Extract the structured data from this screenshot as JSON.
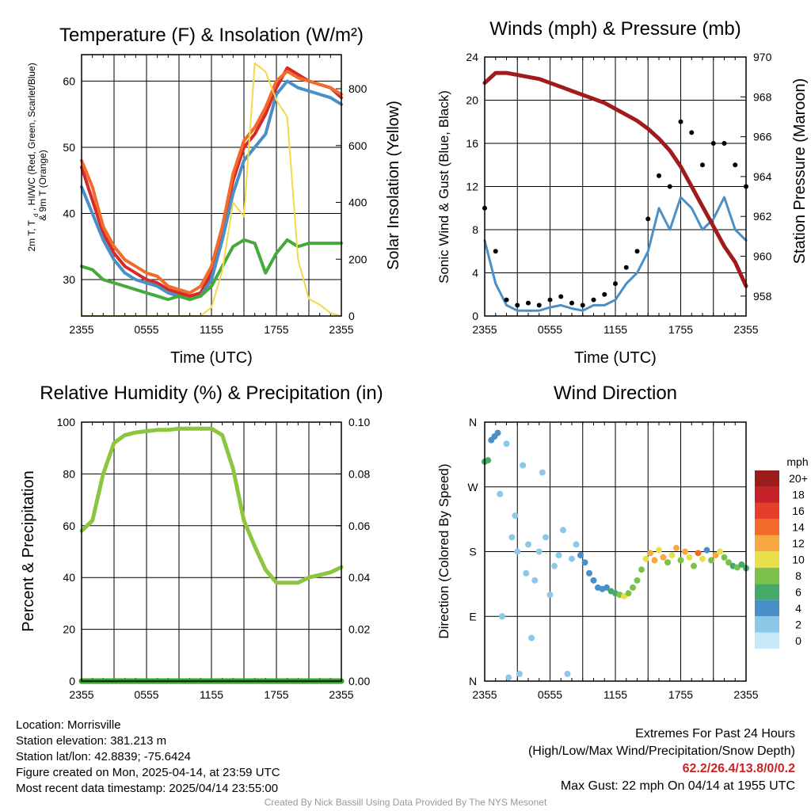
{
  "chart_data": [
    {
      "type": "line",
      "title": "Temperature (F) & Insolation (W/m²)",
      "xlabel": "Time (UTC)",
      "ylabel": "2m T, Td, HI/WC (Red, Green, Scarlet/Blue) & 9m T (Orange)",
      "ylabel_lines": [
        "2m T, T",
        "d",
        ", HI/WC (Red, Green, Scarlet/Blue)",
        "& 9m T (Orange)"
      ],
      "y2label": "Solar Insolation (Yellow)",
      "x_ticks": [
        "2355",
        "0555",
        "1155",
        "1755",
        "2355"
      ],
      "ylim": [
        24.5,
        64
      ],
      "yticks": [
        30,
        40,
        50,
        60
      ],
      "y2lim": [
        0,
        920
      ],
      "y2ticks": [
        0,
        200,
        400,
        600,
        800
      ],
      "x_hours": [
        0,
        1,
        2,
        3,
        4,
        5,
        6,
        7,
        8,
        9,
        10,
        11,
        12,
        13,
        14,
        15,
        16,
        17,
        18,
        19,
        20,
        21,
        22,
        23,
        24
      ],
      "series": [
        {
          "color": "#d42a2a",
          "axis": "left",
          "values": [
            47,
            42,
            37,
            34,
            32,
            31,
            30,
            29.5,
            28.5,
            28,
            27.5,
            28,
            31,
            37,
            45,
            50,
            52,
            55,
            59,
            62,
            61,
            60,
            59.5,
            59,
            57.5
          ]
        },
        {
          "color": "#f26b2a",
          "axis": "left",
          "values": [
            48,
            44,
            38,
            35,
            33,
            32,
            31,
            30.5,
            29,
            28.5,
            28,
            29,
            32,
            38,
            46,
            51,
            53,
            56,
            60,
            61.5,
            60.5,
            60,
            59.5,
            59,
            58
          ]
        },
        {
          "color": "#4a90c8",
          "axis": "left",
          "values": [
            44,
            40,
            36,
            33,
            31,
            30,
            29.5,
            29,
            28,
            27.5,
            27,
            27.5,
            30,
            36,
            43,
            48,
            50,
            52,
            58,
            60,
            59,
            58.5,
            58,
            57.5,
            56.5
          ]
        },
        {
          "color": "#44aa3a",
          "axis": "left",
          "values": [
            32,
            31.5,
            30,
            29.5,
            29,
            28.5,
            28,
            27.5,
            27,
            27.5,
            27,
            27.5,
            29,
            32,
            35,
            36,
            35.5,
            31,
            34,
            36,
            35,
            35.5,
            35.5,
            35.5,
            35.5
          ]
        },
        {
          "color": "#f5d84a",
          "axis": "right",
          "values": [
            0,
            0,
            0,
            0,
            0,
            0,
            0,
            0,
            0,
            0,
            0,
            0,
            30,
            160,
            400,
            350,
            890,
            860,
            760,
            700,
            200,
            60,
            40,
            10,
            0
          ]
        }
      ]
    },
    {
      "type": "line",
      "title": "Winds (mph) & Pressure (mb)",
      "xlabel": "Time (UTC)",
      "ylabel": "Sonic Wind & Gust (Blue, Black)",
      "y2label": "Station Pressure (Maroon)",
      "x_ticks": [
        "2355",
        "0555",
        "1155",
        "1755",
        "2355"
      ],
      "ylim": [
        0,
        24
      ],
      "yticks": [
        0,
        4,
        8,
        12,
        16,
        20,
        24
      ],
      "y2lim": [
        957,
        970
      ],
      "y2ticks": [
        958,
        960,
        962,
        964,
        966,
        968,
        970
      ],
      "x_hours": [
        0,
        1,
        2,
        3,
        4,
        5,
        6,
        7,
        8,
        9,
        10,
        11,
        12,
        13,
        14,
        15,
        16,
        17,
        18,
        19,
        20,
        21,
        22,
        23,
        24
      ],
      "series": [
        {
          "color": "#4a90c8",
          "axis": "left",
          "values": [
            7,
            3,
            1,
            0.5,
            0.5,
            0.5,
            0.8,
            1,
            0.7,
            0.5,
            1,
            1,
            1.5,
            3,
            4,
            6,
            10,
            8,
            11,
            10,
            8,
            9,
            11,
            8,
            7
          ]
        },
        {
          "color": "#000000",
          "axis": "left",
          "values": [
            10,
            6,
            1.5,
            1,
            1.2,
            1,
            1.5,
            1.8,
            1.2,
            1,
            1.5,
            2,
            3,
            4.5,
            6,
            9,
            13,
            12,
            18,
            17,
            14,
            16,
            16,
            14,
            12
          ]
        },
        {
          "color": "#a01c1c",
          "axis": "right",
          "values": [
            968.7,
            969.2,
            969.2,
            969.1,
            969,
            968.9,
            968.7,
            968.5,
            968.3,
            968.1,
            967.9,
            967.7,
            967.4,
            967.1,
            966.8,
            966.4,
            965.9,
            965.3,
            964.5,
            963.5,
            962.5,
            961.5,
            960.5,
            959.7,
            958.5
          ]
        }
      ]
    },
    {
      "type": "line",
      "title": "Relative Humidity (%) & Precipitation (in)",
      "ylabel": "Percent & Precipitation",
      "x_ticks": [
        "2355",
        "0555",
        "1155",
        "1755",
        "2355"
      ],
      "ylim": [
        0,
        100
      ],
      "yticks": [
        0,
        20,
        40,
        60,
        80,
        100
      ],
      "y2lim": [
        0,
        0.1
      ],
      "y2ticks": [
        "0.00",
        "0.02",
        "0.04",
        "0.06",
        "0.08",
        "0.10"
      ],
      "x_hours": [
        0,
        1,
        2,
        3,
        4,
        5,
        6,
        7,
        8,
        9,
        10,
        11,
        12,
        13,
        14,
        15,
        16,
        17,
        18,
        19,
        20,
        21,
        22,
        23,
        24
      ],
      "series": [
        {
          "color": "#8cc63f",
          "axis": "left",
          "values": [
            58,
            62,
            80,
            92,
            95,
            96,
            96.5,
            97,
            97,
            97.5,
            97.5,
            97.5,
            97.5,
            95,
            82,
            62,
            52,
            43,
            38,
            38,
            38,
            40,
            41,
            42,
            44
          ]
        },
        {
          "color": "#33a02c",
          "axis": "right",
          "values": [
            0,
            0,
            0,
            0,
            0,
            0,
            0,
            0,
            0,
            0,
            0,
            0,
            0,
            0,
            0,
            0,
            0,
            0,
            0,
            0,
            0,
            0,
            0,
            0,
            0
          ]
        }
      ]
    },
    {
      "type": "scatter",
      "title": "Wind Direction",
      "ylabel": "Direction (Colored By Speed)",
      "x_ticks": [
        "2355",
        "0555",
        "1155",
        "1755",
        "2355"
      ],
      "y_ticks": [
        "N",
        "E",
        "S",
        "W",
        "N"
      ],
      "ylim": [
        0,
        360
      ],
      "legend_title": "mph",
      "legend_labels": [
        "0",
        "2",
        "4",
        "6",
        "8",
        "10",
        "12",
        "14",
        "16",
        "18",
        "20+"
      ],
      "legend_colors": [
        "#c6e8f7",
        "#8cc8ea",
        "#4a90c8",
        "#44aa6a",
        "#7cc24a",
        "#e8e04a",
        "#f7a840",
        "#f26b2a",
        "#e43e2a",
        "#c42226",
        "#9c1c1c"
      ],
      "points": [
        {
          "x": 0,
          "y": 305,
          "s": 6
        },
        {
          "x": 0.3,
          "y": 307,
          "s": 6
        },
        {
          "x": 0.6,
          "y": 335,
          "s": 4
        },
        {
          "x": 0.9,
          "y": 340,
          "s": 4
        },
        {
          "x": 1.2,
          "y": 345,
          "s": 3
        },
        {
          "x": 1.4,
          "y": 260,
          "s": 1
        },
        {
          "x": 1.6,
          "y": 90,
          "s": 1
        },
        {
          "x": 2,
          "y": 330,
          "s": 1
        },
        {
          "x": 2.2,
          "y": 5,
          "s": 1
        },
        {
          "x": 2.5,
          "y": 200,
          "s": 1
        },
        {
          "x": 2.8,
          "y": 230,
          "s": 1
        },
        {
          "x": 3,
          "y": 180,
          "s": 2
        },
        {
          "x": 3.2,
          "y": 10,
          "s": 1
        },
        {
          "x": 3.5,
          "y": 300,
          "s": 1
        },
        {
          "x": 3.8,
          "y": 150,
          "s": 1
        },
        {
          "x": 4,
          "y": 190,
          "s": 2
        },
        {
          "x": 4.3,
          "y": 60,
          "s": 1
        },
        {
          "x": 4.6,
          "y": 140,
          "s": 1
        },
        {
          "x": 5,
          "y": 180,
          "s": 1
        },
        {
          "x": 5.3,
          "y": 290,
          "s": 1
        },
        {
          "x": 5.6,
          "y": 200,
          "s": 2
        },
        {
          "x": 6,
          "y": 120,
          "s": 1
        },
        {
          "x": 6.4,
          "y": 160,
          "s": 1
        },
        {
          "x": 6.8,
          "y": 175,
          "s": 2
        },
        {
          "x": 7.2,
          "y": 210,
          "s": 2
        },
        {
          "x": 7.6,
          "y": 10,
          "s": 1
        },
        {
          "x": 8,
          "y": 170,
          "s": 2
        },
        {
          "x": 8.4,
          "y": 190,
          "s": 2
        },
        {
          "x": 8.8,
          "y": 175,
          "s": 3
        },
        {
          "x": 9.2,
          "y": 165,
          "s": 3
        },
        {
          "x": 9.6,
          "y": 150,
          "s": 4
        },
        {
          "x": 10,
          "y": 140,
          "s": 4
        },
        {
          "x": 10.4,
          "y": 130,
          "s": 4
        },
        {
          "x": 10.8,
          "y": 128,
          "s": 4
        },
        {
          "x": 11.2,
          "y": 130,
          "s": 4
        },
        {
          "x": 11.6,
          "y": 125,
          "s": 5
        },
        {
          "x": 12,
          "y": 122,
          "s": 6
        },
        {
          "x": 12.4,
          "y": 120,
          "s": 7
        },
        {
          "x": 12.8,
          "y": 118,
          "s": 9
        },
        {
          "x": 13.2,
          "y": 122,
          "s": 7
        },
        {
          "x": 13.6,
          "y": 130,
          "s": 7
        },
        {
          "x": 14,
          "y": 140,
          "s": 8
        },
        {
          "x": 14.4,
          "y": 155,
          "s": 8
        },
        {
          "x": 14.8,
          "y": 170,
          "s": 10
        },
        {
          "x": 15.2,
          "y": 178,
          "s": 12
        },
        {
          "x": 15.6,
          "y": 168,
          "s": 11
        },
        {
          "x": 16,
          "y": 182,
          "s": 9
        },
        {
          "x": 16.4,
          "y": 172,
          "s": 12
        },
        {
          "x": 16.8,
          "y": 165,
          "s": 8
        },
        {
          "x": 17.2,
          "y": 175,
          "s": 10
        },
        {
          "x": 17.6,
          "y": 185,
          "s": 11
        },
        {
          "x": 18,
          "y": 168,
          "s": 8
        },
        {
          "x": 18.4,
          "y": 180,
          "s": 12
        },
        {
          "x": 18.8,
          "y": 172,
          "s": 9
        },
        {
          "x": 19.2,
          "y": 160,
          "s": 8
        },
        {
          "x": 19.6,
          "y": 178,
          "s": 14
        },
        {
          "x": 20,
          "y": 170,
          "s": 10
        },
        {
          "x": 20.4,
          "y": 182,
          "s": 4
        },
        {
          "x": 20.8,
          "y": 168,
          "s": 8
        },
        {
          "x": 21.2,
          "y": 175,
          "s": 12
        },
        {
          "x": 21.6,
          "y": 180,
          "s": 9
        },
        {
          "x": 22,
          "y": 172,
          "s": 8
        },
        {
          "x": 22.4,
          "y": 165,
          "s": 7
        },
        {
          "x": 22.8,
          "y": 160,
          "s": 6
        },
        {
          "x": 23.2,
          "y": 158,
          "s": 7
        },
        {
          "x": 23.6,
          "y": 162,
          "s": 6
        },
        {
          "x": 24,
          "y": 157,
          "s": 5
        }
      ]
    }
  ],
  "info": {
    "location": "Location: Morrisville",
    "elevation": "Station elevation: 381.213 m",
    "latlon": "Station lat/lon: 42.8839; -75.6424",
    "created": "Figure created on Mon, 2025-04-14, at 23:59 UTC",
    "recent": "Most recent data timestamp: 2025/04/14 23:55:00"
  },
  "extremes": {
    "title": "Extremes For Past 24 Hours",
    "subtitle": "(High/Low/Max Wind/Precipitation/Snow Depth)",
    "values": "62.2/26.4/13.8/0/0.2",
    "gust": "Max Gust: 22 mph On 04/14 at 1955 UTC"
  },
  "credit": "Created By Nick Bassill Using Data Provided By The NYS Mesonet"
}
